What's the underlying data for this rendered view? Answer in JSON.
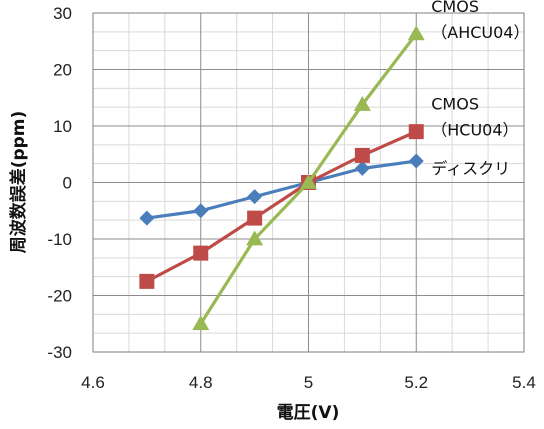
{
  "chart_data": {
    "type": "line",
    "xlabel": "電圧(V)",
    "ylabel": "周波数誤差(ppm)",
    "xlim": [
      4.6,
      5.4
    ],
    "ylim": [
      -30,
      30
    ],
    "x_ticks": [
      "4.6",
      "4.8",
      "5",
      "5.2",
      "5.4"
    ],
    "y_ticks": [
      "-30",
      "-20",
      "-10",
      "0",
      "10",
      "20",
      "30"
    ],
    "grid": true,
    "legend": "none",
    "series": [
      {
        "name": "ディスクリ",
        "color": "#4a7ebb",
        "marker": "diamond",
        "label_lines": [
          "ディスクリ"
        ],
        "x": [
          4.7,
          4.8,
          4.9,
          5.0,
          5.1,
          5.2
        ],
        "y": [
          -6.3,
          -5.0,
          -2.5,
          0.0,
          2.5,
          3.8
        ]
      },
      {
        "name": "CMOS (HCU04)",
        "color": "#be4b48",
        "marker": "square",
        "label_lines": [
          "CMOS",
          "（HCU04）"
        ],
        "x": [
          4.7,
          4.8,
          4.9,
          5.0,
          5.1,
          5.2
        ],
        "y": [
          -17.5,
          -12.5,
          -6.3,
          0.0,
          4.8,
          9.0
        ]
      },
      {
        "name": "CMOS (AHCU04)",
        "color": "#98b954",
        "marker": "triangle",
        "label_lines": [
          "CMOS",
          "（AHCU04）"
        ],
        "x": [
          4.8,
          4.9,
          5.0,
          5.1,
          5.2
        ],
        "y": [
          -25.0,
          -10.0,
          0.0,
          13.8,
          26.3
        ]
      }
    ]
  }
}
